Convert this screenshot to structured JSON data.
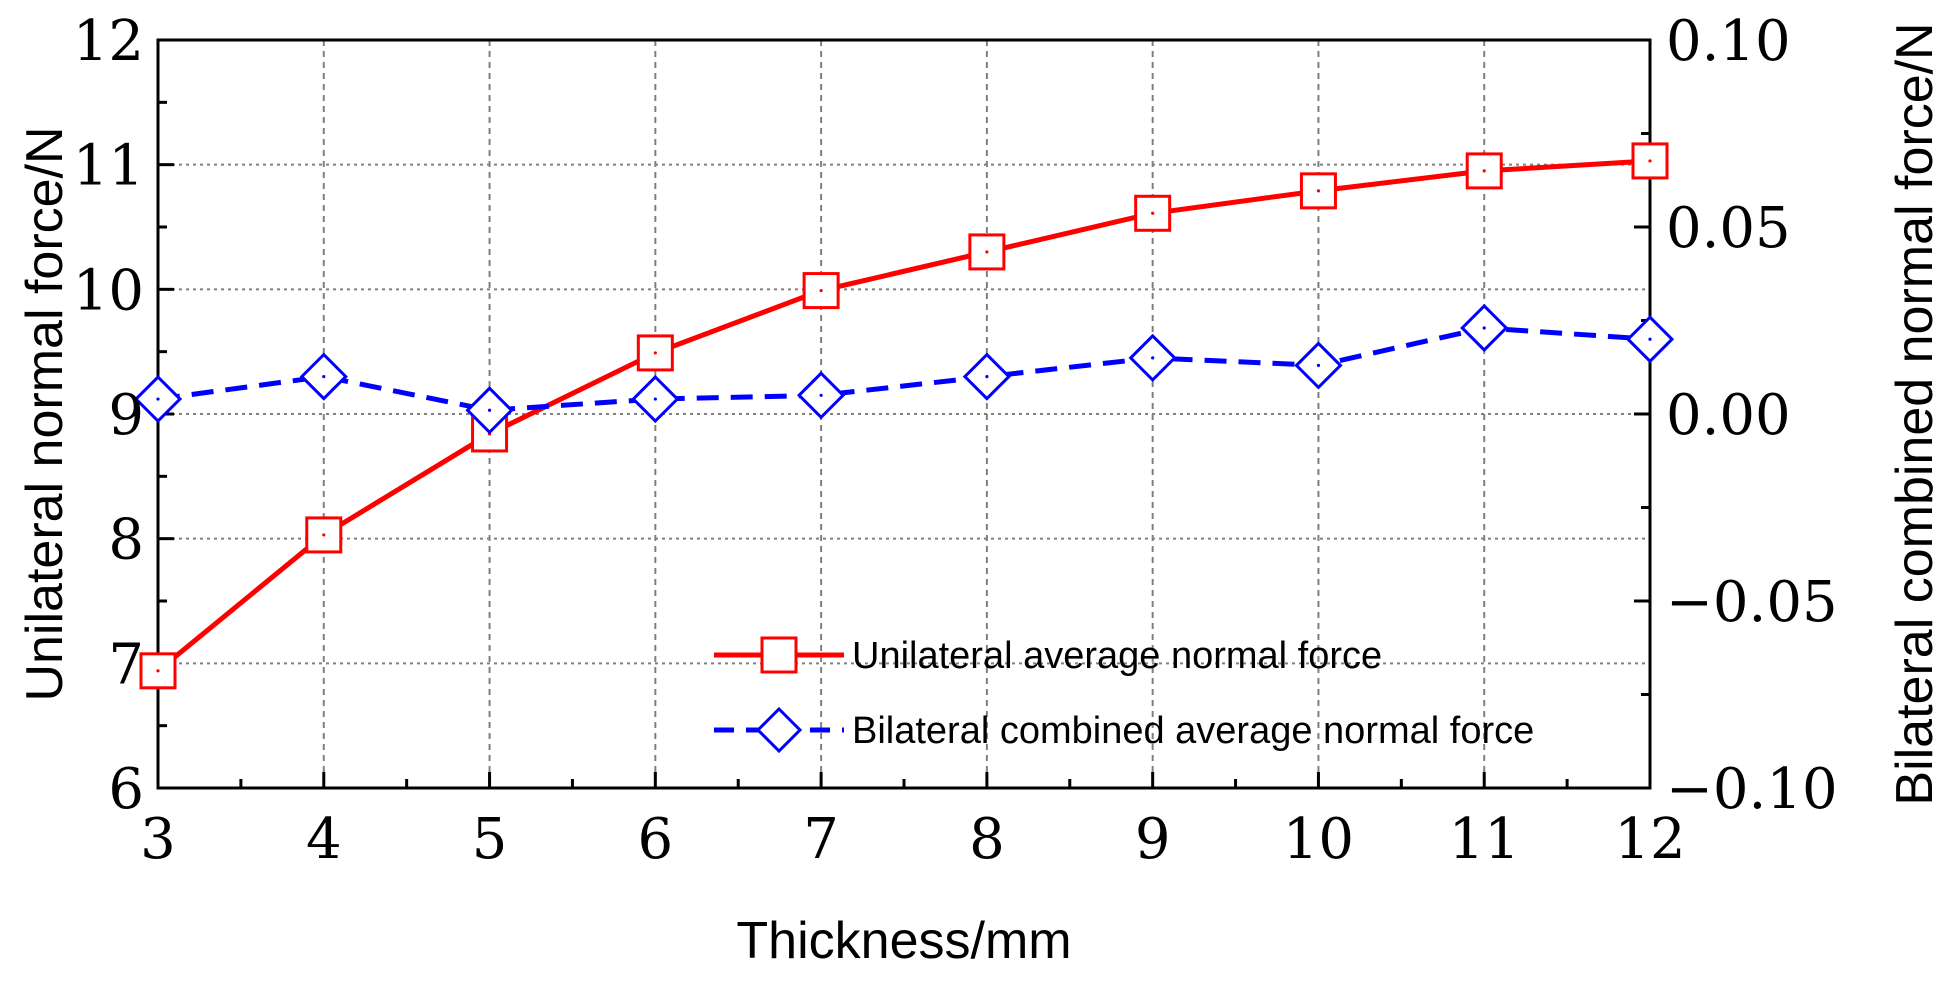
{
  "chart_data": {
    "type": "line",
    "x": [
      3,
      4,
      5,
      6,
      7,
      8,
      9,
      10,
      11,
      12
    ],
    "xlabel": "Thickness/mm",
    "ylabel": "Unilateral  normal force/N",
    "ylabel_right": "Bilateral combined  normal force/N",
    "xlim": [
      3,
      12
    ],
    "ylim": [
      6,
      12
    ],
    "ylim_right": [
      -0.1,
      0.1
    ],
    "x_ticks": [
      "3",
      "4",
      "5",
      "6",
      "7",
      "8",
      "9",
      "10",
      "11",
      "12"
    ],
    "y_ticks": [
      "6",
      "7",
      "8",
      "9",
      "10",
      "11",
      "12"
    ],
    "y_ticks_right": [
      "−0.10",
      "−0.05",
      "0.00",
      "0.05",
      "0.10"
    ],
    "grid": true,
    "legend_position": "lower-right",
    "series": [
      {
        "name": "Unilateral average normal force",
        "axis": "left",
        "values": [
          6.94,
          8.03,
          8.84,
          9.49,
          9.99,
          10.3,
          10.61,
          10.79,
          10.95,
          11.03
        ],
        "color": "#ff0000",
        "line_style": "solid",
        "marker": "square"
      },
      {
        "name": "Bilateral combined average normal force",
        "axis": "right",
        "values": [
          0.004,
          0.01,
          0.001,
          0.004,
          0.005,
          0.01,
          0.015,
          0.013,
          0.023,
          0.02
        ],
        "color": "#0000ff",
        "line_style": "dashed",
        "marker": "diamond"
      }
    ]
  }
}
